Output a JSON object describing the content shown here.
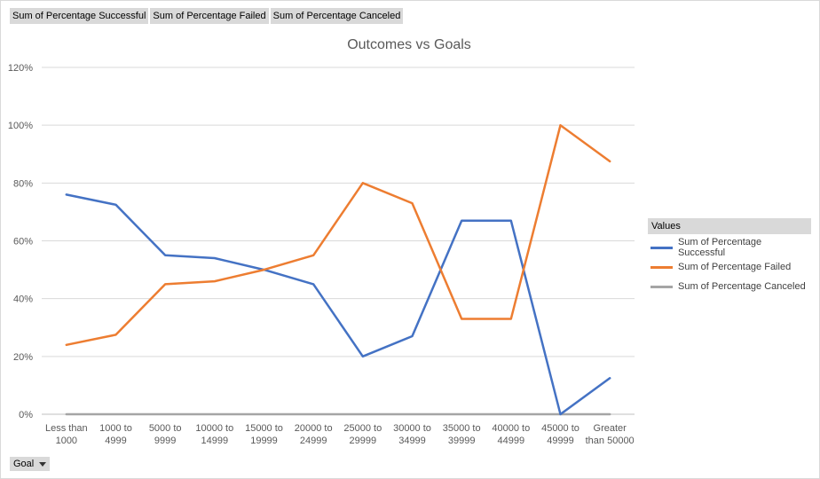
{
  "field_buttons": [
    "Sum of Percentage Successful",
    "Sum of Percentage Failed",
    "Sum of Percentage Canceled"
  ],
  "axis_button": {
    "label": "Goal",
    "icon": "chevron-down-icon"
  },
  "legend": {
    "title": "Values"
  },
  "chart_data": {
    "type": "line",
    "title": "Outcomes vs Goals",
    "xlabel": "",
    "ylabel": "",
    "ylim": [
      0,
      1.2
    ],
    "y_ticks": [
      "0%",
      "20%",
      "40%",
      "60%",
      "80%",
      "100%",
      "120%"
    ],
    "grid": true,
    "legend_position": "right",
    "categories": [
      [
        "Less than",
        "1000"
      ],
      [
        "1000 to",
        "4999"
      ],
      [
        "5000 to",
        "9999"
      ],
      [
        "10000 to",
        "14999"
      ],
      [
        "15000 to",
        "19999"
      ],
      [
        "20000 to",
        "24999"
      ],
      [
        "25000 to",
        "29999"
      ],
      [
        "30000 to",
        "34999"
      ],
      [
        "35000 to",
        "39999"
      ],
      [
        "40000 to",
        "44999"
      ],
      [
        "45000 to",
        "49999"
      ],
      [
        "Greater",
        "than 50000"
      ]
    ],
    "series": [
      {
        "name": "Sum of Percentage Successful",
        "color": "#4472c4",
        "values": [
          0.76,
          0.725,
          0.55,
          0.54,
          0.5,
          0.45,
          0.2,
          0.27,
          0.67,
          0.67,
          0.0,
          0.125
        ]
      },
      {
        "name": "Sum of Percentage Failed",
        "color": "#ed7d31",
        "values": [
          0.24,
          0.275,
          0.45,
          0.46,
          0.5,
          0.55,
          0.8,
          0.73,
          0.33,
          0.33,
          1.0,
          0.875
        ]
      },
      {
        "name": "Sum of Percentage Canceled",
        "color": "#a5a5a5",
        "values": [
          0,
          0,
          0,
          0,
          0,
          0,
          0,
          0,
          0,
          0,
          0,
          0
        ]
      }
    ]
  }
}
